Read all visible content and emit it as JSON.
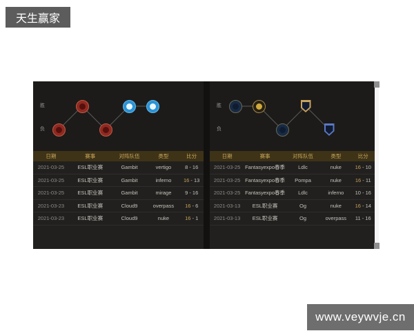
{
  "page": {
    "badge": "天生赢家",
    "watermark": "www.veywvje.cn"
  },
  "graph_labels": {
    "win": "胜",
    "loss": "负"
  },
  "table_headers": [
    "日期",
    "赛事",
    "对阵队伍",
    "类型",
    "比分"
  ],
  "score_separator": " - ",
  "colors": {
    "accent_gold": "#c9a35c",
    "table_header_bg": "#3e3317",
    "panel_bg": "#21201e",
    "gambit_red": "#8e2a22",
    "cloud9_blue": "#2a93d5",
    "ldlc_navy": "#182a44",
    "pompa_gold": "#d2a93a",
    "og_gold": "#c9a35c",
    "og_blue": "#5b79c2"
  },
  "panels": [
    {
      "side": "left",
      "matches": [
        {
          "date": "2021-03-25",
          "event": "ESL职业赛",
          "opponent": "Gambit",
          "map": "vertigo",
          "score_for": "8",
          "score_against": "16",
          "result": "loss"
        },
        {
          "date": "2021-03-25",
          "event": "ESL职业赛",
          "opponent": "Gambit",
          "map": "inferno",
          "score_for": "16",
          "score_against": "13",
          "result": "win"
        },
        {
          "date": "2021-03-25",
          "event": "ESL职业赛",
          "opponent": "Gambit",
          "map": "mirage",
          "score_for": "9",
          "score_against": "16",
          "result": "loss"
        },
        {
          "date": "2021-03-23",
          "event": "ESL职业赛",
          "opponent": "Cloud9",
          "map": "overpass",
          "score_for": "16",
          "score_against": "6",
          "result": "win"
        },
        {
          "date": "2021-03-23",
          "event": "ESL职业赛",
          "opponent": "Cloud9",
          "map": "nuke",
          "score_for": "16",
          "score_against": "1",
          "result": "win"
        }
      ]
    },
    {
      "side": "right",
      "matches": [
        {
          "date": "2021-03-25",
          "event": "Fantasyexpo春季",
          "opponent": "Ldlc",
          "map": "nuke",
          "score_for": "16",
          "score_against": "10",
          "result": "win"
        },
        {
          "date": "2021-03-25",
          "event": "Fantasyexpo春季",
          "opponent": "Pompa",
          "map": "nuke",
          "score_for": "16",
          "score_against": "11",
          "result": "win"
        },
        {
          "date": "2021-03-25",
          "event": "Fantasyexpo春季",
          "opponent": "Ldlc",
          "map": "inferno",
          "score_for": "10",
          "score_against": "16",
          "result": "loss"
        },
        {
          "date": "2021-03-13",
          "event": "ESL职业赛",
          "opponent": "Og",
          "map": "nuke",
          "score_for": "16",
          "score_against": "14",
          "result": "win"
        },
        {
          "date": "2021-03-13",
          "event": "ESL职业赛",
          "opponent": "Og",
          "map": "overpass",
          "score_for": "11",
          "score_against": "16",
          "result": "loss"
        }
      ]
    }
  ]
}
